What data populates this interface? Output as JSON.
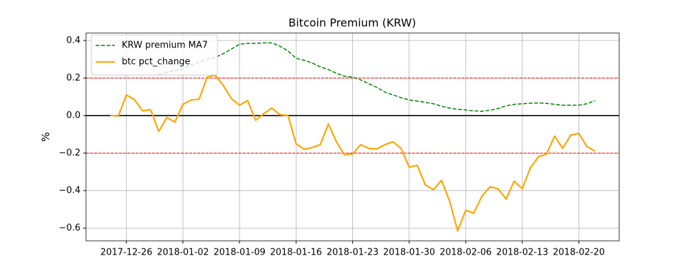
{
  "chart_data": {
    "type": "line",
    "title": "Bitcoin Premium (KRW)",
    "y_label": "%",
    "x": [
      "2017-12-24",
      "2017-12-25",
      "2017-12-26",
      "2017-12-27",
      "2017-12-28",
      "2017-12-29",
      "2017-12-30",
      "2017-12-31",
      "2018-01-01",
      "2018-01-02",
      "2018-01-03",
      "2018-01-04",
      "2018-01-05",
      "2018-01-06",
      "2018-01-07",
      "2018-01-08",
      "2018-01-09",
      "2018-01-10",
      "2018-01-11",
      "2018-01-12",
      "2018-01-13",
      "2018-01-14",
      "2018-01-15",
      "2018-01-16",
      "2018-01-17",
      "2018-01-18",
      "2018-01-19",
      "2018-01-20",
      "2018-01-21",
      "2018-01-22",
      "2018-01-23",
      "2018-01-24",
      "2018-01-25",
      "2018-01-26",
      "2018-01-27",
      "2018-01-28",
      "2018-01-29",
      "2018-01-30",
      "2018-01-31",
      "2018-02-01",
      "2018-02-02",
      "2018-02-03",
      "2018-02-04",
      "2018-02-05",
      "2018-02-06",
      "2018-02-07",
      "2018-02-08",
      "2018-02-09",
      "2018-02-10",
      "2018-02-11",
      "2018-02-12",
      "2018-02-13",
      "2018-02-14",
      "2018-02-15",
      "2018-02-16",
      "2018-02-17",
      "2018-02-18",
      "2018-02-19",
      "2018-02-20",
      "2018-02-21",
      "2018-02-22"
    ],
    "series": [
      {
        "name": "KRW premium MA7",
        "color": "#008000",
        "dash": true,
        "values": [
          null,
          null,
          null,
          null,
          null,
          null,
          0.22,
          0.23,
          0.24,
          0.25,
          0.27,
          0.285,
          0.3,
          0.31,
          0.33,
          0.355,
          0.38,
          0.385,
          0.385,
          0.387,
          0.387,
          0.37,
          0.345,
          0.305,
          0.295,
          0.28,
          0.26,
          0.245,
          0.225,
          0.21,
          0.205,
          0.19,
          0.17,
          0.15,
          0.125,
          0.11,
          0.095,
          0.083,
          0.077,
          0.07,
          0.063,
          0.05,
          0.04,
          0.033,
          0.03,
          0.025,
          0.023,
          0.028,
          0.038,
          0.052,
          0.06,
          0.063,
          0.066,
          0.067,
          0.065,
          0.06,
          0.055,
          0.055,
          0.055,
          0.063,
          0.08
        ]
      },
      {
        "name": "btc pct_change",
        "color": "#ffa500",
        "dash": false,
        "values": [
          0.0,
          -0.002,
          0.11,
          0.085,
          0.025,
          0.032,
          -0.085,
          -0.01,
          -0.035,
          0.06,
          0.083,
          0.087,
          0.205,
          0.215,
          0.16,
          0.09,
          0.055,
          0.08,
          -0.025,
          0.01,
          0.04,
          0.005,
          0.0,
          -0.15,
          -0.18,
          -0.17,
          -0.155,
          -0.045,
          -0.14,
          -0.21,
          -0.205,
          -0.155,
          -0.175,
          -0.178,
          -0.155,
          -0.14,
          -0.175,
          -0.275,
          -0.265,
          -0.37,
          -0.395,
          -0.345,
          -0.455,
          -0.615,
          -0.505,
          -0.52,
          -0.43,
          -0.38,
          -0.39,
          -0.445,
          -0.35,
          -0.39,
          -0.28,
          -0.22,
          -0.205,
          -0.11,
          -0.175,
          -0.105,
          -0.095,
          -0.165,
          -0.19
        ]
      }
    ],
    "hlines": [
      {
        "value": 0.2,
        "color": "#ff0000",
        "dash": true
      },
      {
        "value": 0,
        "color": "#000000",
        "dash": false
      },
      {
        "value": -0.2,
        "color": "#ff0000",
        "dash": true
      }
    ],
    "xlim": [
      "2017-12-21",
      "2018-02-25"
    ],
    "xticks": [
      "2017-12-26",
      "2018-01-02",
      "2018-01-09",
      "2018-01-16",
      "2018-01-23",
      "2018-01-30",
      "2018-02-06",
      "2018-02-13",
      "2018-02-20"
    ],
    "ylim": [
      -0.668,
      0.44
    ],
    "yticks": [
      {
        "value": -0.6,
        "label": "−0.6"
      },
      {
        "value": -0.4,
        "label": "−0.4"
      },
      {
        "value": -0.2,
        "label": "−0.2"
      },
      {
        "value": 0,
        "label": "0.0"
      },
      {
        "value": 0.2,
        "label": "0.2"
      },
      {
        "value": 0.4,
        "label": "0.4"
      }
    ],
    "grid": true,
    "legend": "upper left"
  }
}
